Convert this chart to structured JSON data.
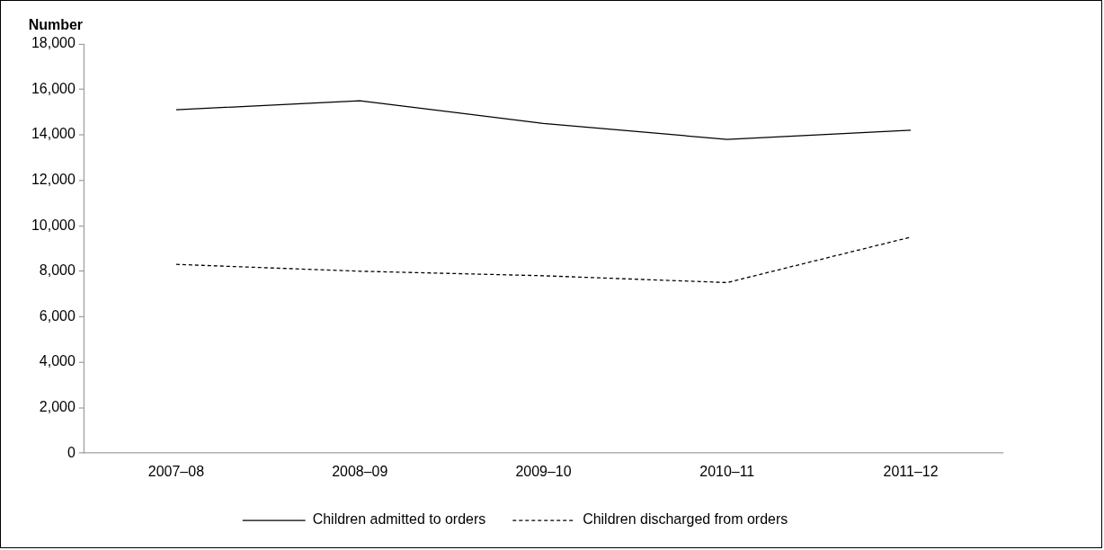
{
  "chart_data": {
    "type": "line",
    "ylabel": "Number",
    "categories": [
      "2007–08",
      "2008–09",
      "2009–10",
      "2010–11",
      "2011–12"
    ],
    "series": [
      {
        "name": "Children admitted to orders",
        "color": "#000000",
        "line_style": "solid",
        "values": [
          15100,
          15500,
          14500,
          13800,
          14200
        ]
      },
      {
        "name": "Children discharged from orders",
        "color": "#000000",
        "line_style": "dashed",
        "values": [
          8300,
          8000,
          7800,
          7500,
          9500
        ]
      }
    ],
    "ylim": [
      0,
      18000
    ],
    "yticks": [
      0,
      {
        "value": 2000,
        "label": "2,000"
      },
      {
        "value": 4000,
        "label": "4,000"
      },
      {
        "value": 6000,
        "label": "6,000"
      },
      {
        "value": 8000,
        "label": "8,000"
      },
      {
        "value": 10000,
        "label": "10,000"
      },
      {
        "value": 12000,
        "label": "12,000"
      },
      {
        "value": 14000,
        "label": "14,000"
      },
      {
        "value": 16000,
        "label": "16,000"
      },
      {
        "value": 18000,
        "label": "18,000"
      }
    ],
    "grid": false,
    "legend": "bottom",
    "marker": "none"
  }
}
